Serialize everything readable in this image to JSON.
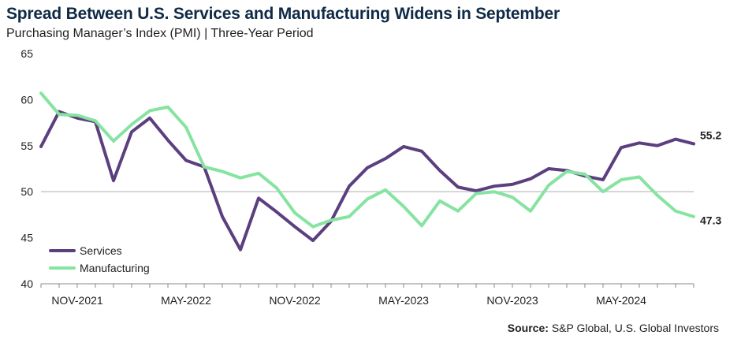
{
  "chart_data": {
    "type": "line",
    "title": "Spread Between U.S. Services and Manufacturing Widens in September",
    "subtitle": "Purchasing Manager’s Index (PMI) | Three-Year Period",
    "ylim": [
      40,
      65
    ],
    "yticks": [
      40,
      45,
      50,
      55,
      60,
      65
    ],
    "reference_line": 50,
    "x": [
      "Sep-2021",
      "Oct-2021",
      "Nov-2021",
      "Dec-2021",
      "Jan-2022",
      "Feb-2022",
      "Mar-2022",
      "Apr-2022",
      "May-2022",
      "Jun-2022",
      "Jul-2022",
      "Aug-2022",
      "Sep-2022",
      "Oct-2022",
      "Nov-2022",
      "Dec-2022",
      "Jan-2023",
      "Feb-2023",
      "Mar-2023",
      "Apr-2023",
      "May-2023",
      "Jun-2023",
      "Jul-2023",
      "Aug-2023",
      "Sep-2023",
      "Oct-2023",
      "Nov-2023",
      "Dec-2023",
      "Jan-2024",
      "Feb-2024",
      "Mar-2024",
      "Apr-2024",
      "May-2024",
      "Jun-2024",
      "Jul-2024",
      "Aug-2024",
      "Sep-2024"
    ],
    "x_tick_labels": [
      {
        "label": "NOV-2021",
        "index": 2
      },
      {
        "label": "MAY-2022",
        "index": 8
      },
      {
        "label": "NOV-2022",
        "index": 14
      },
      {
        "label": "MAY-2023",
        "index": 20
      },
      {
        "label": "NOV-2023",
        "index": 26
      },
      {
        "label": "MAY-2024",
        "index": 32
      }
    ],
    "series": [
      {
        "name": "Services",
        "color": "#5b3f7e",
        "values": [
          54.9,
          58.7,
          58.0,
          57.6,
          51.2,
          56.5,
          58.0,
          55.6,
          53.4,
          52.7,
          47.3,
          43.7,
          49.3,
          47.8,
          46.2,
          44.7,
          46.8,
          50.6,
          52.6,
          53.6,
          54.9,
          54.4,
          52.3,
          50.5,
          50.1,
          50.6,
          50.8,
          51.4,
          52.5,
          52.3,
          51.7,
          51.3,
          54.8,
          55.3,
          55.0,
          55.7,
          55.2
        ],
        "end_label": "55.2"
      },
      {
        "name": "Manufacturing",
        "color": "#86e3a1",
        "values": [
          60.7,
          58.4,
          58.3,
          57.7,
          55.5,
          57.3,
          58.8,
          59.2,
          57.0,
          52.7,
          52.2,
          51.5,
          52.0,
          50.4,
          47.7,
          46.2,
          46.9,
          47.3,
          49.2,
          50.2,
          48.4,
          46.3,
          49.0,
          47.9,
          49.8,
          50.0,
          49.4,
          47.9,
          50.7,
          52.2,
          51.9,
          50.0,
          51.3,
          51.6,
          49.6,
          47.9,
          47.3
        ],
        "end_label": "47.3"
      }
    ],
    "legend_position": "bottom-left"
  },
  "source": {
    "label": "Source:",
    "text": "S&P Global, U.S. Global Investors"
  }
}
